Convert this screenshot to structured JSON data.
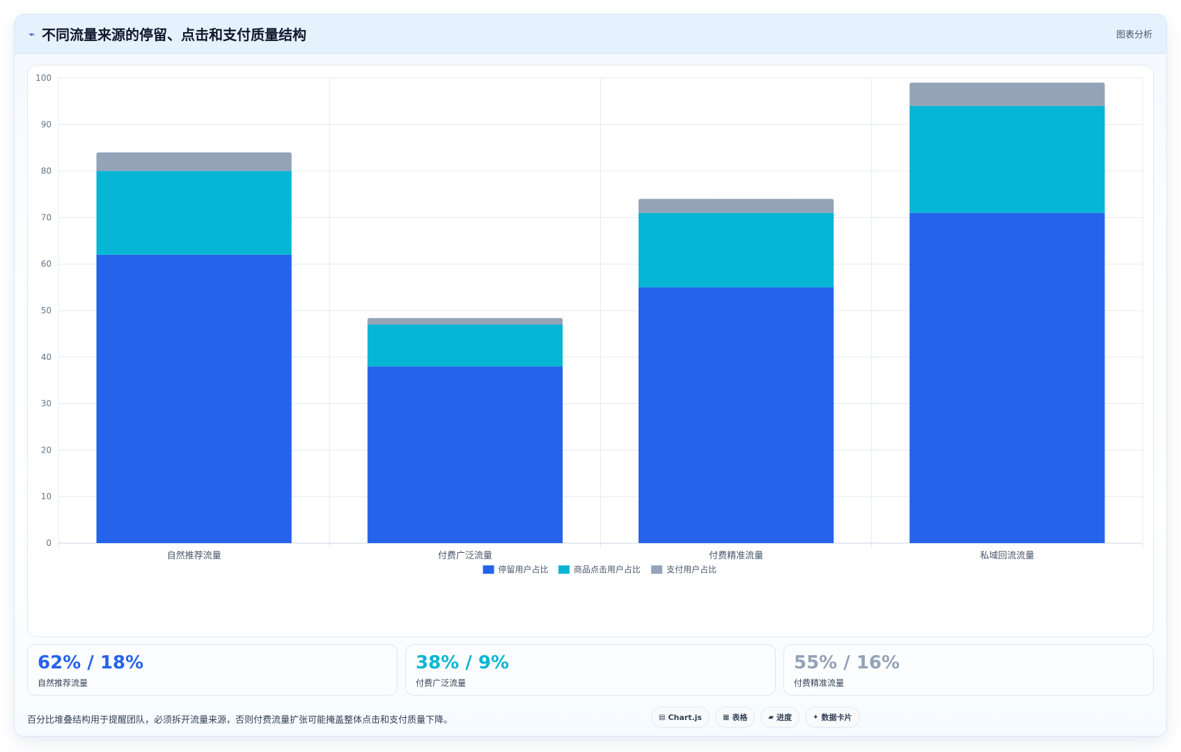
{
  "header": {
    "icon": "trend-icon",
    "title": "不同流量来源的停留、点击和支付质量结构",
    "link": "图表分析"
  },
  "chart_data": {
    "type": "bar",
    "stacked": true,
    "categories": [
      "自然推荐流量",
      "付费广泛流量",
      "付费精准流量",
      "私域回流流量"
    ],
    "series": [
      {
        "name": "停留用户占比",
        "values": [
          62,
          38,
          55,
          71
        ],
        "color": "#2563eb"
      },
      {
        "name": "商品点击用户占比",
        "values": [
          18,
          9,
          16,
          23
        ],
        "color": "#06b6d4"
      },
      {
        "name": "支付用户占比",
        "values": [
          4,
          1.4,
          3,
          5
        ],
        "color": "#94a3b8"
      }
    ],
    "ylim": [
      0,
      100
    ],
    "yticks": [
      0,
      10,
      20,
      30,
      40,
      50,
      60,
      70,
      80,
      90,
      100
    ],
    "grid": true,
    "legend": "bottom"
  },
  "stats": [
    {
      "value": "62% / 18%",
      "label": "自然推荐流量",
      "color": "#2563eb"
    },
    {
      "value": "38% / 9%",
      "label": "付费广泛流量",
      "color": "#06b6d4"
    },
    {
      "value": "55% / 16%",
      "label": "付费精准流量",
      "color": "#94a3b8"
    }
  ],
  "footer": {
    "note": "百分比堆叠结构用于提醒团队，必须拆开流量来源，否则付费流量扩张可能掩盖整体点击和支付质量下降。",
    "pills": [
      {
        "icon": "chart-icon",
        "glyph": "▤",
        "label": "Chart.js"
      },
      {
        "icon": "table-icon",
        "glyph": "▦",
        "label": "表格"
      },
      {
        "icon": "progress-icon",
        "glyph": "▰",
        "label": "进度"
      },
      {
        "icon": "sparkle-icon",
        "glyph": "✦",
        "label": "数据卡片"
      }
    ]
  }
}
